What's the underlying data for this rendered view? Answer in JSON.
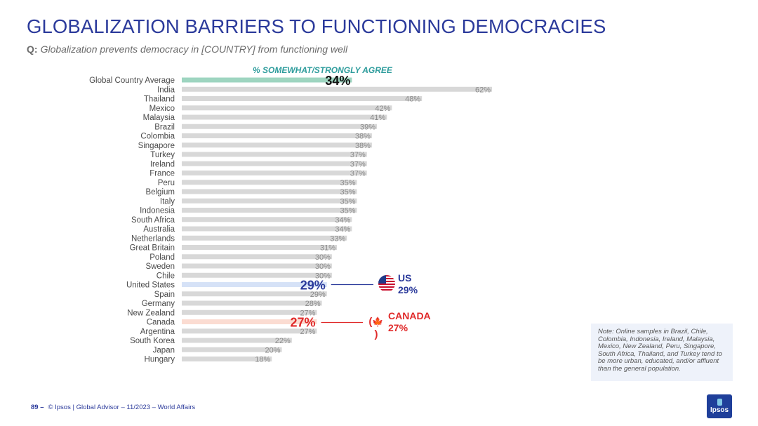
{
  "title": "GLOBALIZATION BARRIERS TO FUNCTIONING DEMOCRACIES",
  "question": {
    "label": "Q:",
    "text": "Globalization prevents democracy in [COUNTRY] from functioning well"
  },
  "chart_data": {
    "type": "bar",
    "orientation": "horizontal",
    "series_title": "% SOMEWHAT/STRONGLY AGREE",
    "categories": [
      "Global Country Average",
      "India",
      "Thailand",
      "Mexico",
      "Malaysia",
      "Brazil",
      "Colombia",
      "Singapore",
      "Turkey",
      "Ireland",
      "France",
      "Peru",
      "Belgium",
      "Italy",
      "Indonesia",
      "South Africa",
      "Australia",
      "Netherlands",
      "Great Britain",
      "Poland",
      "Sweden",
      "Chile",
      "United States",
      "Spain",
      "Germany",
      "New Zealand",
      "Canada",
      "Argentina",
      "South Korea",
      "Japan",
      "Hungary"
    ],
    "values": [
      34,
      62,
      48,
      42,
      41,
      39,
      38,
      38,
      37,
      37,
      37,
      35,
      35,
      35,
      35,
      34,
      34,
      33,
      31,
      30,
      30,
      30,
      29,
      29,
      28,
      27,
      27,
      27,
      22,
      20,
      18
    ],
    "value_labels": [
      "34%",
      "62%",
      "48%",
      "42%",
      "41%",
      "39%",
      "38%",
      "38%",
      "37%",
      "37%",
      "37%",
      "35%",
      "35%",
      "35%",
      "35%",
      "34%",
      "34%",
      "33%",
      "31%",
      "30%",
      "30%",
      "30%",
      "29%",
      "29%",
      "28%",
      "27%",
      "27%",
      "27%",
      "22%",
      "20%",
      "18%"
    ],
    "xlim": [
      0,
      62
    ],
    "highlights": {
      "Global Country Average": {
        "bar_color": "#9ed5c0",
        "label_color": "#111111"
      },
      "United States": {
        "bar_color": "#d6e2f7",
        "label_color": "#2b3a9b"
      },
      "Canada": {
        "bar_color": "#fbdcd2",
        "label_color": "#e02a2a"
      }
    },
    "default_bar_color": "#d8d8d8"
  },
  "callouts": {
    "us": {
      "name": "US",
      "value": "29%",
      "color": "#2b3a9b"
    },
    "canada": {
      "name": "CANADA",
      "value": "27%",
      "color": "#e02a2a"
    }
  },
  "flags": {
    "us": "us-flag-icon",
    "canada": "canada-flag-icon",
    "canada_leaf": "🍁"
  },
  "note": "Note: Online samples in Brazil, Chile, Colombia, Indonesia, Ireland, Malaysia, Mexico, New Zealand, Peru, Singapore, South Africa, Thailand, and Turkey tend to be more urban, educated, and/or affluent than the general population.",
  "footer": {
    "page": "89 –",
    "text": "© Ipsos | Global Advisor – 11/2023 – World Affairs"
  },
  "logo": {
    "text": "Ipsos",
    "color": "#1f3f9a"
  }
}
